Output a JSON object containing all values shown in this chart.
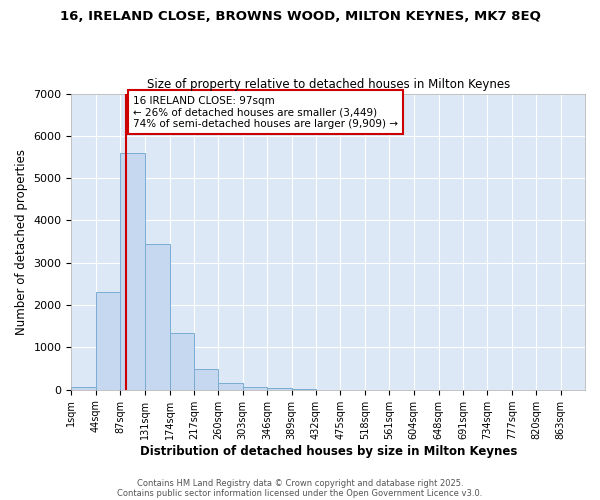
{
  "title1": "16, IRELAND CLOSE, BROWNS WOOD, MILTON KEYNES, MK7 8EQ",
  "title2": "Size of property relative to detached houses in Milton Keynes",
  "xlabel": "Distribution of detached houses by size in Milton Keynes",
  "ylabel": "Number of detached properties",
  "bin_edges": [
    1,
    44,
    87,
    131,
    174,
    217,
    260,
    303,
    346,
    389,
    432,
    475,
    518,
    561,
    604,
    648,
    691,
    734,
    777,
    820,
    863,
    906
  ],
  "bar_heights": [
    75,
    2300,
    5600,
    3450,
    1350,
    480,
    155,
    65,
    40,
    10,
    5,
    2,
    1,
    0,
    0,
    0,
    0,
    0,
    0,
    0,
    0
  ],
  "bar_color": "#c5d8f0",
  "bar_edgecolor": "#7aadd4",
  "vline_x": 97,
  "vline_color": "#cc0000",
  "ylim": [
    0,
    7000
  ],
  "annotation_title": "16 IRELAND CLOSE: 97sqm",
  "annotation_line1": "← 26% of detached houses are smaller (3,449)",
  "annotation_line2": "74% of semi-detached houses are larger (9,909) →",
  "annotation_box_color": "#cc0000",
  "fig_background": "#ffffff",
  "plot_background": "#dce8f5",
  "grid_color": "#ffffff",
  "tick_labels": [
    "1sqm",
    "44sqm",
    "87sqm",
    "131sqm",
    "174sqm",
    "217sqm",
    "260sqm",
    "303sqm",
    "346sqm",
    "389sqm",
    "432sqm",
    "475sqm",
    "518sqm",
    "561sqm",
    "604sqm",
    "648sqm",
    "691sqm",
    "734sqm",
    "777sqm",
    "820sqm",
    "863sqm"
  ],
  "footnote1": "Contains HM Land Registry data © Crown copyright and database right 2025.",
  "footnote2": "Contains public sector information licensed under the Open Government Licence v3.0."
}
